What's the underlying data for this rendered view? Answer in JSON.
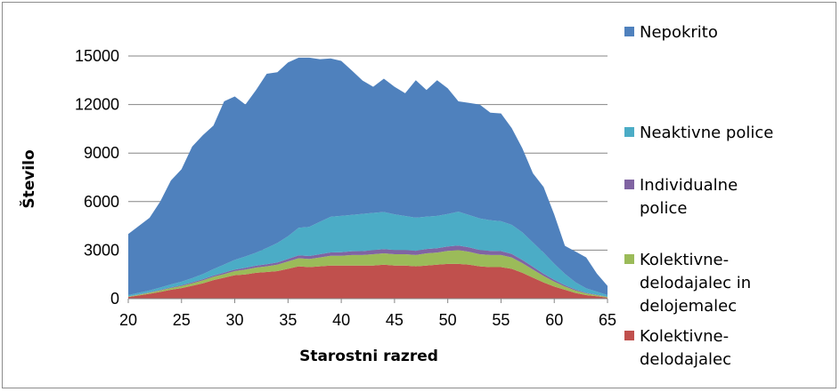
{
  "chart_data": {
    "type": "area",
    "stacked": true,
    "xlabel": "Starostni razred",
    "ylabel": "Število",
    "xlim": [
      20,
      65
    ],
    "ylim": [
      0,
      15000
    ],
    "x_ticks": [
      20,
      25,
      30,
      35,
      40,
      45,
      50,
      55,
      60,
      65
    ],
    "y_ticks": [
      0,
      3000,
      6000,
      9000,
      12000,
      15000
    ],
    "y_tick_labels": [
      "0",
      "3000",
      "6000",
      "9000",
      "12000",
      "15000"
    ],
    "grid": "horizontal",
    "legend_position": "right",
    "x": [
      20,
      21,
      22,
      23,
      24,
      25,
      26,
      27,
      28,
      29,
      30,
      31,
      32,
      33,
      34,
      35,
      36,
      37,
      38,
      39,
      40,
      41,
      42,
      43,
      44,
      45,
      46,
      47,
      48,
      49,
      50,
      51,
      52,
      53,
      54,
      55,
      56,
      57,
      58,
      59,
      60,
      61,
      62,
      63,
      64,
      65
    ],
    "series": [
      {
        "name": "Kolektivne-delodajalec",
        "color": "#c0504d",
        "values": [
          100,
          200,
          300,
          420,
          550,
          650,
          800,
          950,
          1150,
          1300,
          1450,
          1500,
          1600,
          1650,
          1700,
          1850,
          2000,
          1950,
          2000,
          2050,
          2050,
          2050,
          2050,
          2050,
          2100,
          2050,
          2050,
          2000,
          2050,
          2100,
          2150,
          2150,
          2100,
          2000,
          1950,
          1950,
          1850,
          1600,
          1300,
          1000,
          750,
          550,
          350,
          220,
          150,
          60
        ]
      },
      {
        "name": "Kolektivne-delodajalec in delojemalec",
        "color": "#9bbb59",
        "values": [
          30,
          50,
          70,
          90,
          110,
          130,
          150,
          180,
          200,
          220,
          250,
          300,
          320,
          350,
          400,
          450,
          500,
          500,
          550,
          600,
          600,
          650,
          650,
          700,
          700,
          700,
          700,
          700,
          750,
          750,
          800,
          850,
          800,
          750,
          750,
          750,
          700,
          600,
          500,
          400,
          300,
          200,
          150,
          100,
          70,
          40
        ]
      },
      {
        "name": "Individualne police",
        "color": "#8064a2",
        "values": [
          10,
          15,
          20,
          30,
          40,
          50,
          60,
          70,
          80,
          90,
          100,
          110,
          120,
          130,
          140,
          160,
          180,
          190,
          200,
          210,
          220,
          230,
          240,
          250,
          260,
          260,
          260,
          260,
          270,
          270,
          280,
          280,
          270,
          260,
          250,
          240,
          220,
          200,
          170,
          140,
          110,
          80,
          60,
          40,
          30,
          20
        ]
      },
      {
        "name": "Neaktivne police",
        "color": "#4bacc6",
        "values": [
          80,
          100,
          120,
          150,
          180,
          220,
          260,
          320,
          400,
          500,
          600,
          700,
          800,
          1000,
          1200,
          1400,
          1700,
          1800,
          2000,
          2200,
          2250,
          2250,
          2300,
          2300,
          2300,
          2200,
          2100,
          2050,
          2000,
          2000,
          2000,
          2100,
          2000,
          1950,
          1900,
          1850,
          1800,
          1700,
          1500,
          1300,
          1000,
          700,
          450,
          280,
          180,
          100
        ]
      },
      {
        "name": "Nepokrito",
        "color": "#4f81bd",
        "values": [
          3780,
          4135,
          4490,
          5310,
          6420,
          6950,
          8130,
          8580,
          8870,
          10090,
          10100,
          9390,
          10060,
          10770,
          10560,
          10740,
          10520,
          10460,
          10050,
          9790,
          9580,
          8920,
          8240,
          7800,
          8240,
          7890,
          7590,
          8490,
          7830,
          8380,
          7770,
          6820,
          6930,
          7040,
          6650,
          6660,
          5980,
          5200,
          4280,
          4060,
          3040,
          1740,
          1900,
          1910,
          1120,
          570
        ]
      }
    ]
  }
}
